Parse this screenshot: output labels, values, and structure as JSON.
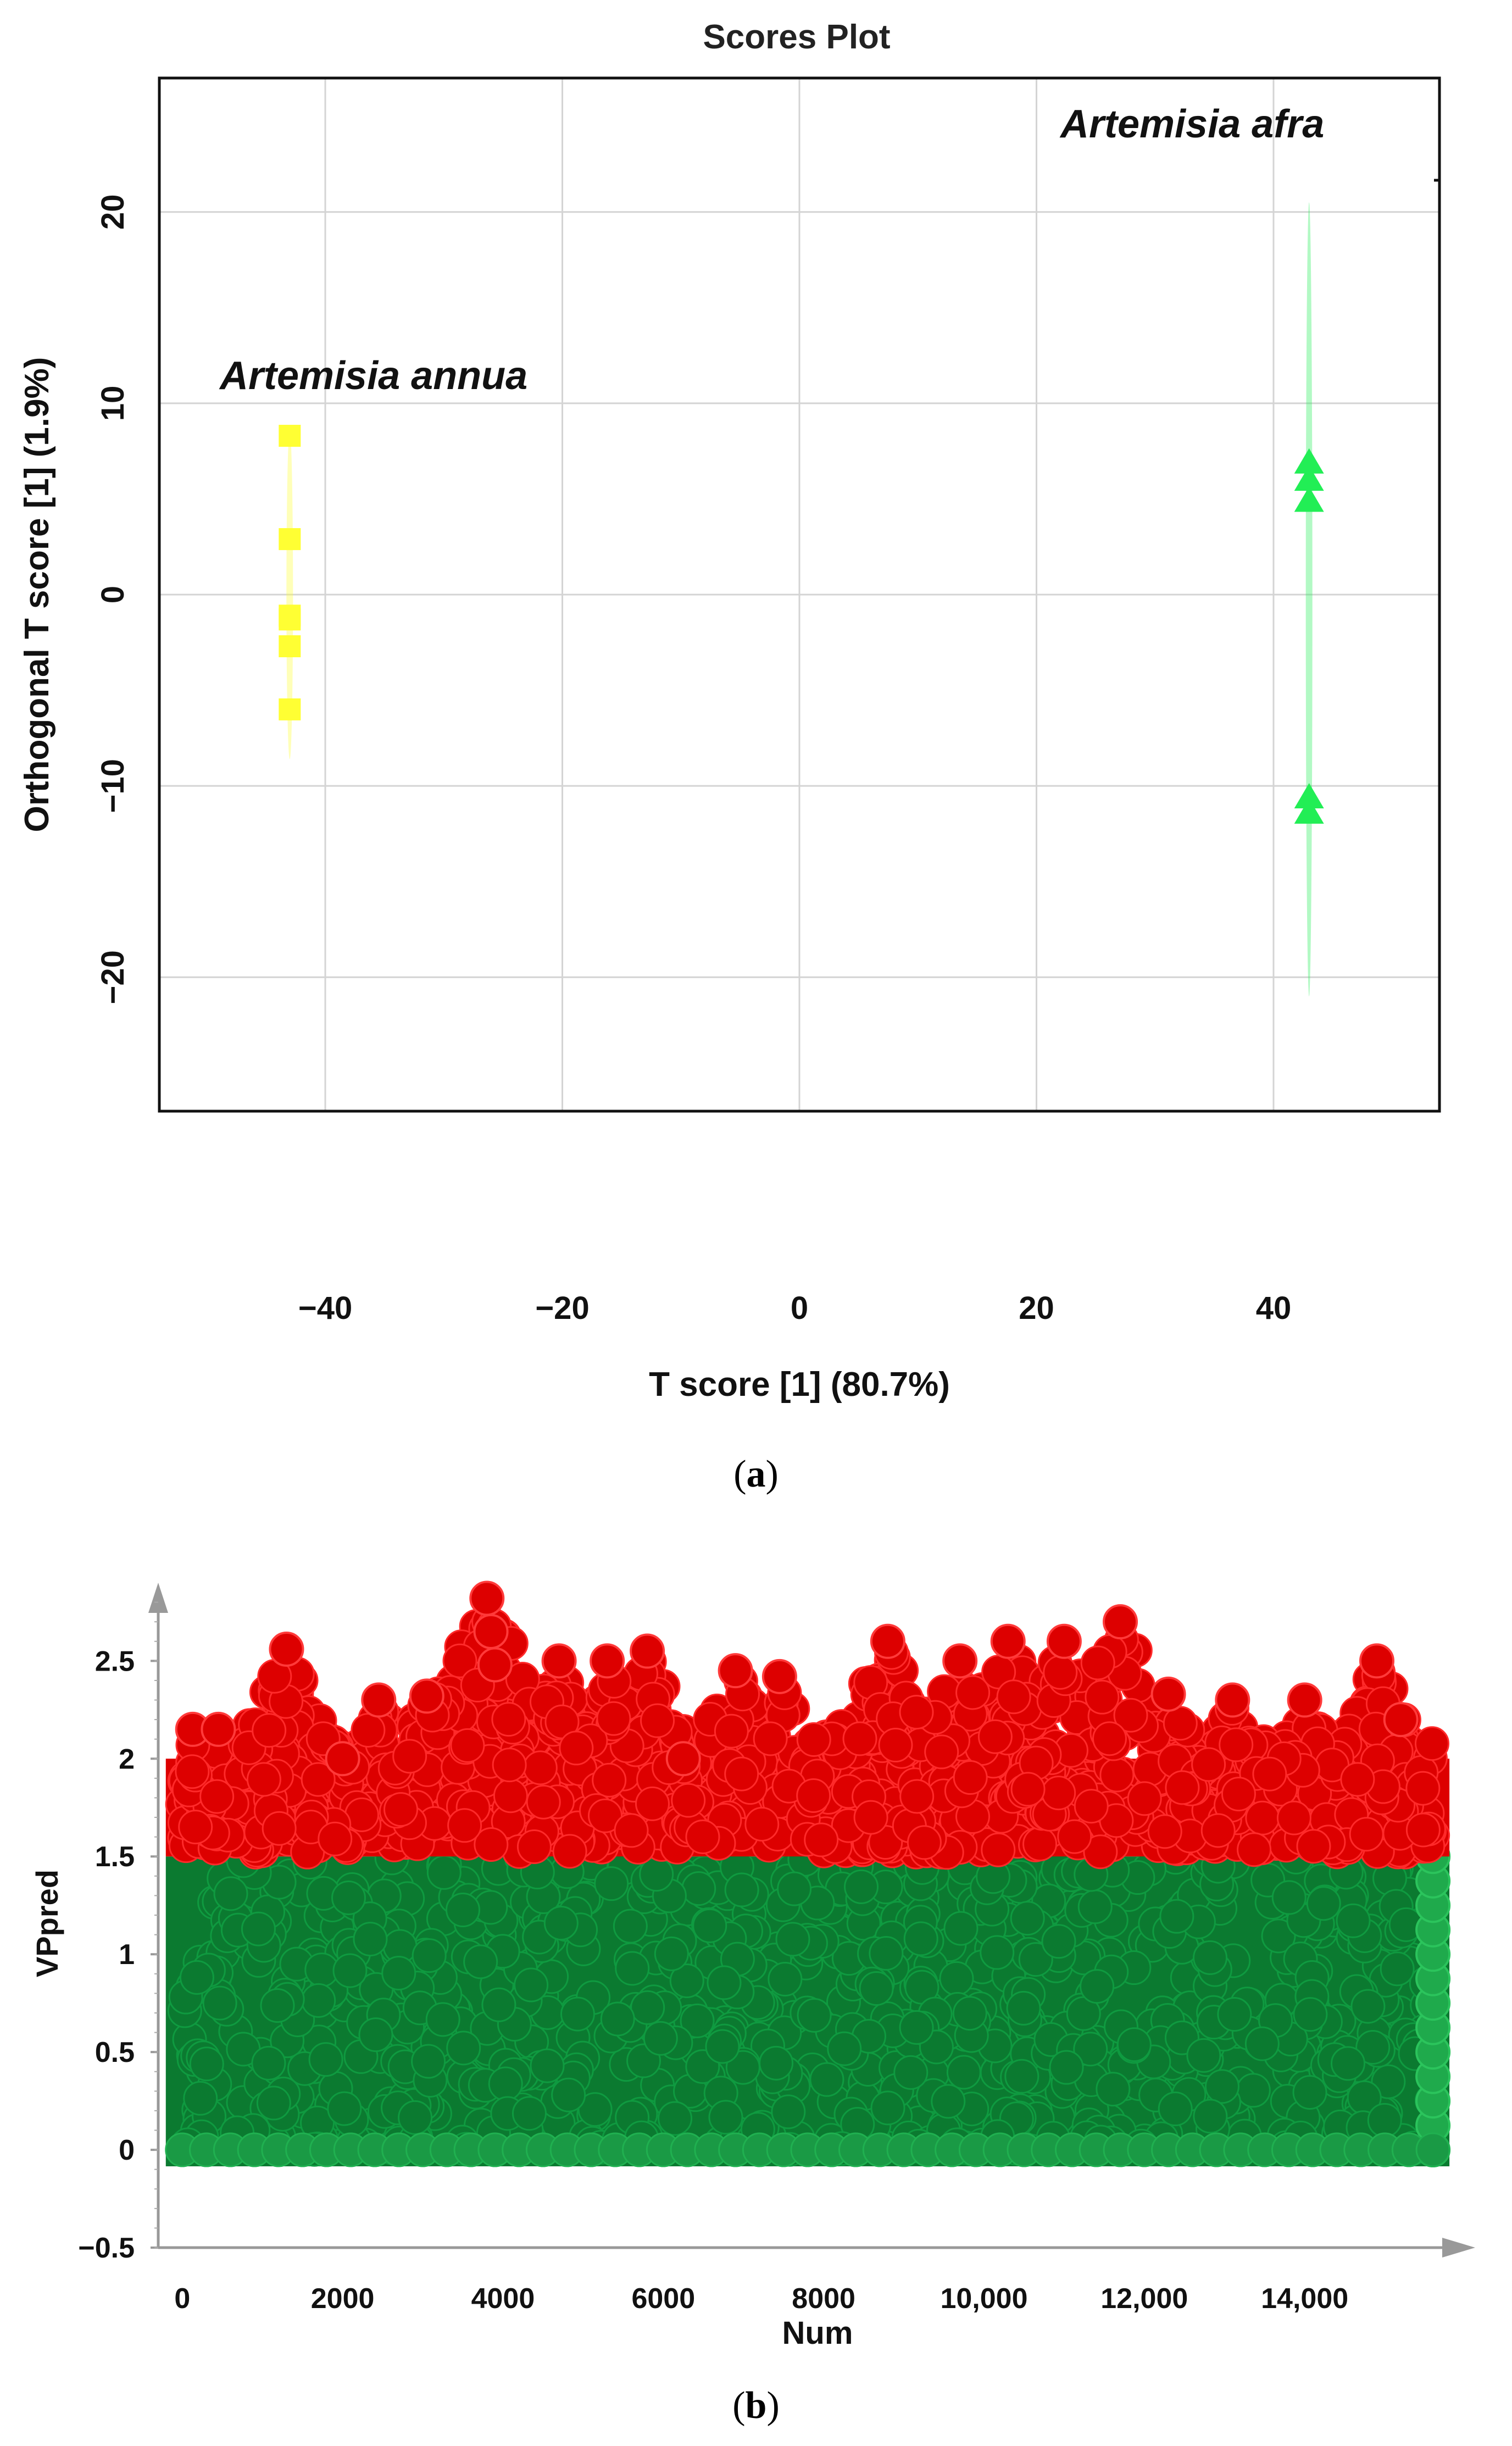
{
  "panel_a": {
    "caption_open": "(",
    "caption_letter": "a",
    "caption_close": ")"
  },
  "panel_b": {
    "caption_open": "(",
    "caption_letter": "b",
    "caption_close": ")"
  },
  "chart_data": [
    {
      "type": "scatter",
      "title": "Scores Plot",
      "xlabel": "T score [1] (80.7%)",
      "ylabel": "Orthogonal T score [1] (1.9%)",
      "xlim": [
        -54,
        54
      ],
      "ylim": [
        -27,
        27
      ],
      "xticks": [
        -40,
        -20,
        0,
        20,
        40
      ],
      "yticks": [
        -20,
        -10,
        0,
        10,
        20
      ],
      "xtick_labels": [
        "−40",
        "−20",
        "0",
        "20",
        "40"
      ],
      "ytick_labels": [
        "−20",
        "−10",
        "0",
        "10",
        "20"
      ],
      "grid": true,
      "annotations": [
        "Artemisia annua",
        "Artemisia afra"
      ],
      "series": [
        {
          "marker": "square",
          "color": "#ffff33",
          "x": [
            -43,
            -43,
            -43,
            -43,
            -43,
            -43
          ],
          "y": [
            8.3,
            2.9,
            -1.1,
            -1.3,
            -2.7,
            -6.0
          ],
          "ellipse_y": [
            -8.6,
            8.6
          ]
        },
        {
          "marker": "triangle",
          "color": "#22ee55",
          "x": [
            43,
            43,
            43,
            43,
            43
          ],
          "y": [
            6.9,
            6.0,
            4.9,
            -10.6,
            -11.4
          ],
          "ellipse_y": [
            -21,
            20.5
          ]
        }
      ]
    },
    {
      "type": "scatter",
      "title": "",
      "xlabel": "Num",
      "ylabel": "VPpred",
      "xlim": [
        -300,
        15750
      ],
      "ylim": [
        -0.5,
        2.9
      ],
      "xticks": [
        0,
        2000,
        4000,
        6000,
        8000,
        10000,
        12000,
        14000
      ],
      "xtick_labels": [
        "0",
        "2000",
        "4000",
        "6000",
        "8000",
        "10,000",
        "12,000",
        "14,000"
      ],
      "yticks": [
        -0.5,
        0,
        0.5,
        1,
        1.5,
        2,
        2.5
      ],
      "ytick_labels": [
        "−0.5",
        "0",
        "0.5",
        "1",
        "1.5",
        "2",
        "2.5"
      ],
      "threshold": 1.5,
      "n_points": 15600,
      "series": [
        {
          "name_hidden": "VP below 1.5",
          "color": "#0b7a30",
          "range": [
            0,
            1.5
          ]
        },
        {
          "name_hidden": "VP above 1.5",
          "color": "#dd0000",
          "range": [
            1.5,
            2.85
          ]
        }
      ],
      "peaks": [
        [
          130,
          2.15
        ],
        [
          450,
          2.15
        ],
        [
          1300,
          2.56
        ],
        [
          2000,
          2.0
        ],
        [
          2450,
          2.3
        ],
        [
          3050,
          2.32
        ],
        [
          3800,
          2.82
        ],
        [
          3850,
          2.65
        ],
        [
          3900,
          2.48
        ],
        [
          4700,
          2.5
        ],
        [
          5300,
          2.5
        ],
        [
          5800,
          2.55
        ],
        [
          6250,
          2.0
        ],
        [
          6900,
          2.45
        ],
        [
          7450,
          2.42
        ],
        [
          8800,
          2.6
        ],
        [
          9700,
          2.5
        ],
        [
          10300,
          2.6
        ],
        [
          11000,
          2.6
        ],
        [
          11700,
          2.7
        ],
        [
          12300,
          2.33
        ],
        [
          13100,
          2.3
        ],
        [
          14000,
          2.3
        ],
        [
          14900,
          2.5
        ],
        [
          15200,
          2.2
        ]
      ]
    }
  ]
}
